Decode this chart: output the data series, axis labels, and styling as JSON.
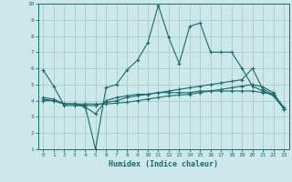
{
  "title": "",
  "xlabel": "Humidex (Indice chaleur)",
  "xlim": [
    -0.5,
    23.5
  ],
  "ylim": [
    1,
    10
  ],
  "xticks": [
    0,
    1,
    2,
    3,
    4,
    5,
    6,
    7,
    8,
    9,
    10,
    11,
    12,
    13,
    14,
    15,
    16,
    17,
    18,
    19,
    20,
    21,
    22,
    23
  ],
  "yticks": [
    1,
    2,
    3,
    4,
    5,
    6,
    7,
    8,
    9,
    10
  ],
  "bg_color": "#cce8e8",
  "grid_color": "#aacccc",
  "line_color": "#1a6b6b",
  "lines": [
    {
      "x": [
        0,
        1,
        2,
        3,
        4,
        5,
        6,
        7,
        8,
        9,
        10,
        11,
        12,
        13,
        14,
        15,
        16,
        17,
        18,
        19,
        20,
        21,
        22,
        23
      ],
      "y": [
        5.9,
        4.9,
        3.7,
        3.7,
        3.7,
        1.0,
        4.8,
        5.0,
        5.9,
        6.5,
        7.6,
        9.9,
        7.9,
        6.3,
        8.6,
        8.8,
        7.0,
        7.0,
        7.0,
        6.0,
        4.9,
        4.6,
        4.3,
        3.5
      ]
    },
    {
      "x": [
        0,
        1,
        2,
        3,
        4,
        5,
        6,
        7,
        8,
        9,
        10,
        11,
        12,
        13,
        14,
        15,
        16,
        17,
        18,
        19,
        20,
        21,
        22,
        23
      ],
      "y": [
        4.2,
        4.1,
        3.8,
        3.8,
        3.7,
        3.7,
        3.9,
        4.0,
        4.2,
        4.3,
        4.4,
        4.5,
        4.6,
        4.7,
        4.8,
        4.9,
        5.0,
        5.1,
        5.2,
        5.3,
        6.0,
        4.7,
        4.4,
        3.5
      ]
    },
    {
      "x": [
        0,
        1,
        2,
        3,
        4,
        5,
        6,
        7,
        8,
        9,
        10,
        11,
        12,
        13,
        14,
        15,
        16,
        17,
        18,
        19,
        20,
        21,
        22,
        23
      ],
      "y": [
        4.1,
        4.0,
        3.8,
        3.8,
        3.6,
        3.2,
        4.0,
        4.2,
        4.3,
        4.4,
        4.4,
        4.5,
        4.5,
        4.5,
        4.5,
        4.6,
        4.6,
        4.6,
        4.6,
        4.6,
        4.6,
        4.5,
        4.4,
        3.6
      ]
    },
    {
      "x": [
        0,
        1,
        2,
        3,
        4,
        5,
        6,
        7,
        8,
        9,
        10,
        11,
        12,
        13,
        14,
        15,
        16,
        17,
        18,
        19,
        20,
        21,
        22,
        23
      ],
      "y": [
        4.0,
        4.0,
        3.8,
        3.8,
        3.8,
        3.8,
        3.8,
        3.85,
        3.9,
        4.0,
        4.1,
        4.2,
        4.3,
        4.35,
        4.4,
        4.5,
        4.6,
        4.7,
        4.8,
        4.9,
        5.0,
        4.85,
        4.5,
        3.5
      ]
    }
  ]
}
